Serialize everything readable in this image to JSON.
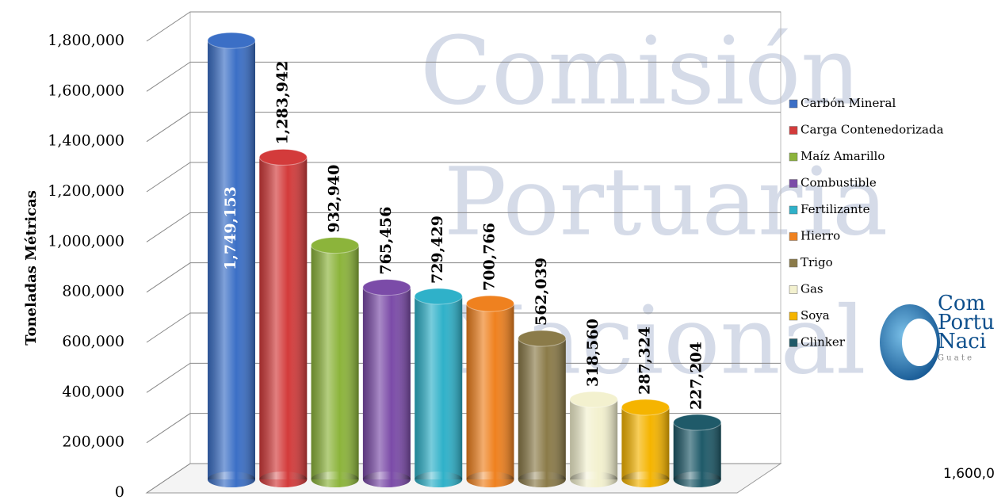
{
  "chart_data": {
    "type": "bar",
    "y_label": "Toneladas Métricas",
    "categories": [
      "Carbón Mineral",
      "Carga Contenedorizada",
      "Maíz Amarillo",
      "Combustible",
      "Fertilizante",
      "Hierro",
      "Trigo",
      "Gas",
      "Soya",
      "Clinker"
    ],
    "values": [
      1749153,
      1283942,
      932940,
      765456,
      729429,
      700766,
      562039,
      318560,
      287324,
      227204
    ],
    "value_labels": [
      "1,749,153",
      "1,283,942",
      "932,940",
      "765,456",
      "729,429",
      "700,766",
      "562,039",
      "318,560",
      "287,324",
      "227,204"
    ],
    "colors": [
      "#3b6fc6",
      "#d33b3b",
      "#8cb43b",
      "#7b4ba8",
      "#2fb1c9",
      "#ef811f",
      "#8b7b49",
      "#f3f1cf",
      "#f5b400",
      "#1f5a69"
    ],
    "ylim": [
      0,
      1800000
    ],
    "yticks": [
      {
        "value": 0,
        "label": "0"
      },
      {
        "value": 200000,
        "label": "200,000"
      },
      {
        "value": 400000,
        "label": "400,000"
      },
      {
        "value": 600000,
        "label": "600,000"
      },
      {
        "value": 800000,
        "label": "800,000"
      },
      {
        "value": 1000000,
        "label": "1,000,000"
      },
      {
        "value": 1200000,
        "label": "1,200,000"
      },
      {
        "value": 1400000,
        "label": "1,400,000"
      },
      {
        "value": 1600000,
        "label": "1,600,000"
      },
      {
        "value": 1800000,
        "label": "1,800,000"
      }
    ],
    "grid": true,
    "watermark": [
      "Comisión",
      "Portuaria",
      "Nacional"
    ],
    "logo": [
      "Com",
      "Portu",
      "Naci",
      "G u a t e"
    ],
    "stray_text": "1,600,0"
  }
}
